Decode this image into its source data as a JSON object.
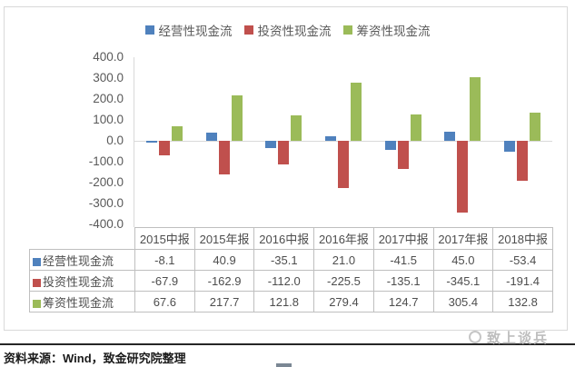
{
  "chart_data": {
    "type": "bar",
    "categories": [
      "2015中报",
      "2015年报",
      "2016中报",
      "2016年报",
      "2017中报",
      "2017年报",
      "2018中报"
    ],
    "series": [
      {
        "name": "经营性现金流",
        "color": "#4F81BD",
        "values": [
          -8.1,
          40.9,
          -35.1,
          21.0,
          -41.5,
          45.0,
          -53.4
        ]
      },
      {
        "name": "投资性现金流",
        "color": "#C0504D",
        "values": [
          -67.9,
          -162.9,
          -112.0,
          -225.5,
          -135.1,
          -345.1,
          -191.4
        ]
      },
      {
        "name": "筹资性现金流",
        "color": "#9BBB59",
        "values": [
          67.6,
          217.7,
          121.8,
          279.4,
          124.7,
          305.4,
          132.8
        ]
      }
    ],
    "title": "",
    "xlabel": "",
    "ylabel": "",
    "ylim": [
      -400,
      400
    ],
    "y_ticks": [
      "400.0",
      "300.0",
      "200.0",
      "100.0",
      "0.0",
      "-100.0",
      "-200.0",
      "-300.0",
      "-400.0"
    ],
    "grid": false,
    "legend_position": "top",
    "data_table": true
  },
  "footer": {
    "source_text": "资料来源：Wind，致金研究院整理"
  },
  "watermark": {
    "text": "致上谈兵"
  },
  "colors": {
    "axis_text": "#595959",
    "table_border": "#BFBFBF",
    "box_border": "#D9D9D9",
    "rule": "#262626"
  }
}
